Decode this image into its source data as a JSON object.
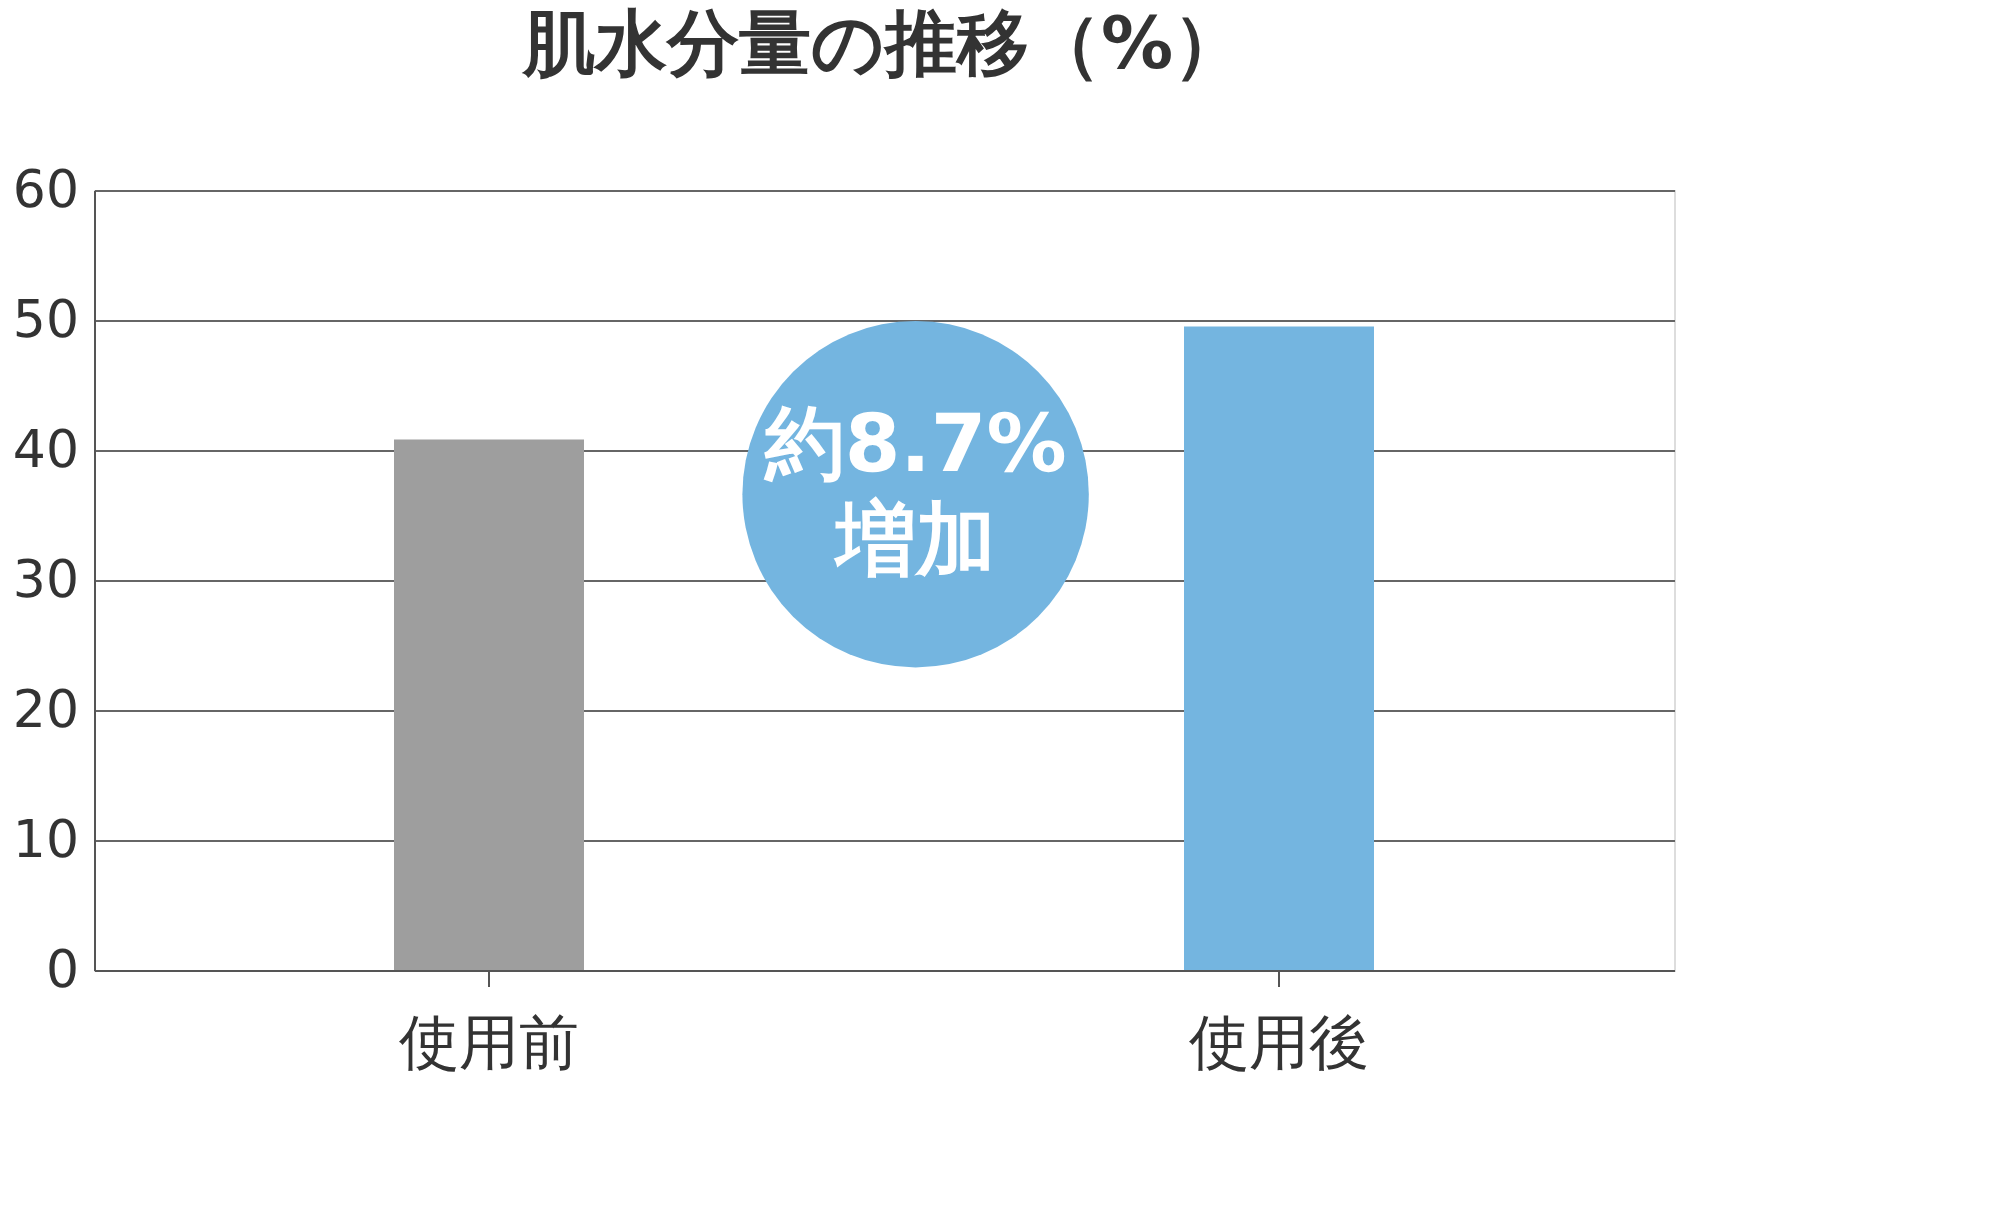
{
  "chart_data": {
    "type": "bar",
    "title": "肌水分量の推移（%）",
    "categories": [
      "使用前",
      "使用後"
    ],
    "values": [
      40.8,
      49.5
    ],
    "colors": [
      "#9e9e9e",
      "#74b5e0"
    ],
    "ylim": [
      0,
      60
    ],
    "yticks": [
      0,
      10,
      20,
      30,
      40,
      50,
      60
    ],
    "grid": "y",
    "annotations": [
      "約8.7%\n増加"
    ]
  }
}
